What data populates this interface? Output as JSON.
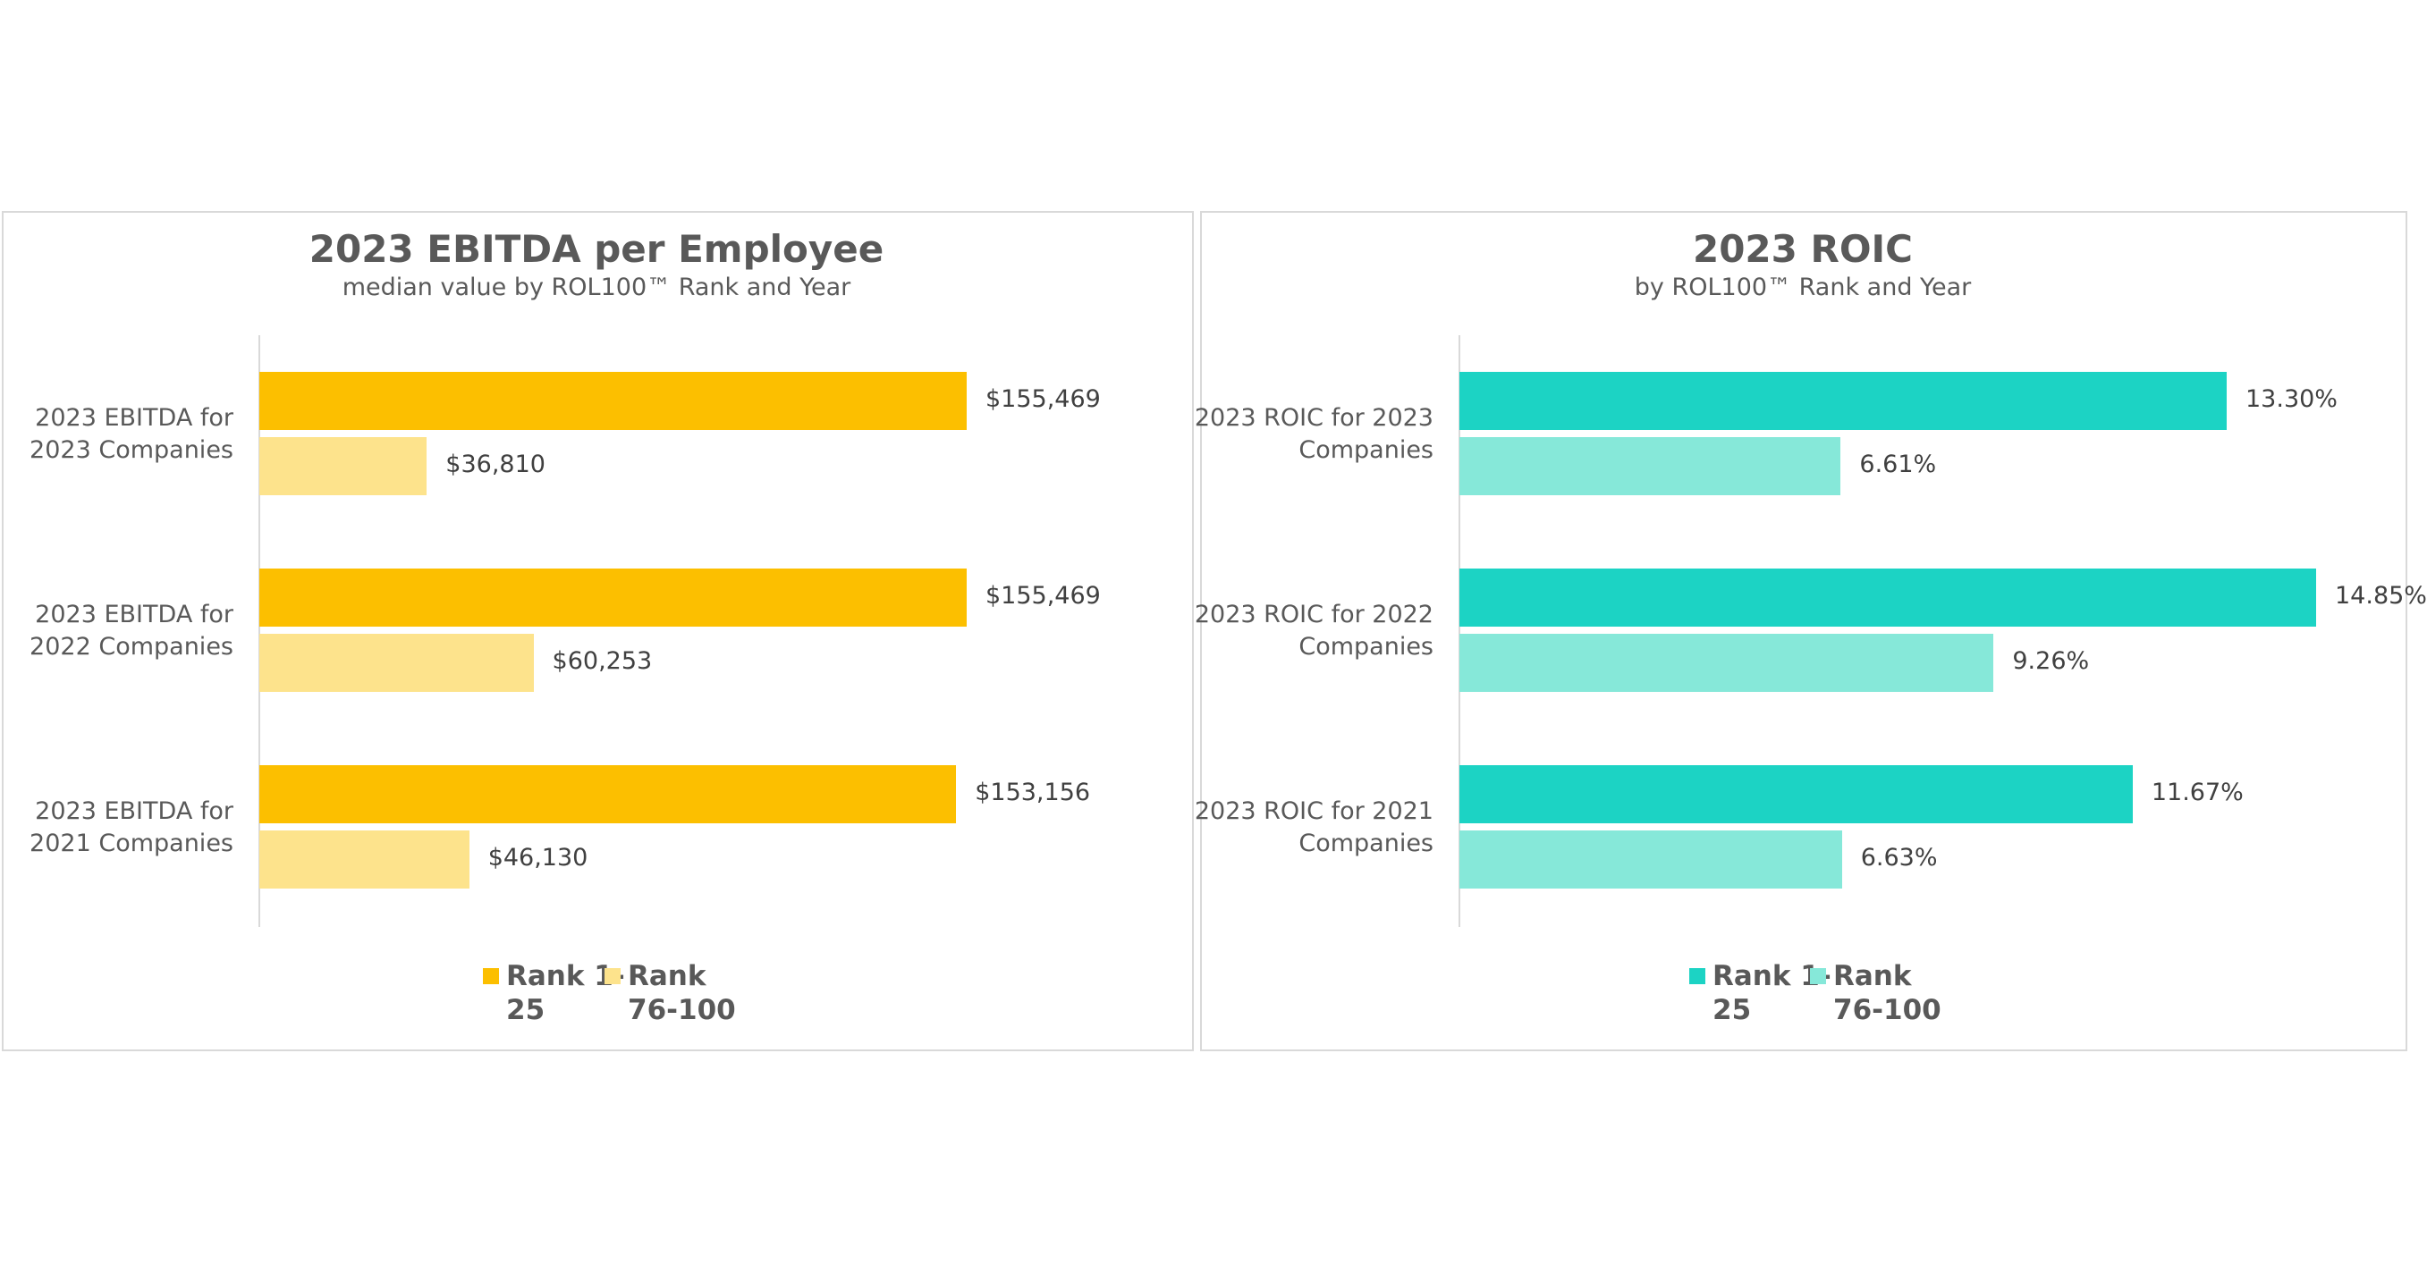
{
  "chart_data": [
    {
      "type": "bar",
      "orientation": "horizontal",
      "title": "2023 EBITDA per Employee",
      "subtitle": "median value by ROL100™ Rank and Year",
      "categories": [
        "2023 EBITDA for 2023 Companies",
        "2023 EBITDA for 2022 Companies",
        "2023 EBITDA for 2021 Companies"
      ],
      "series": [
        {
          "name": "Rank 1-25",
          "color": "#fcbf00",
          "values": [
            155469,
            155469,
            153156
          ],
          "value_labels": [
            "$155,469",
            "$155,469",
            "$153,156"
          ]
        },
        {
          "name": "Rank 76-100",
          "color": "#fde38c",
          "values": [
            36810,
            60253,
            46130
          ],
          "value_labels": [
            "$36,810",
            "$60,253",
            "$46,130"
          ]
        }
      ]
    },
    {
      "type": "bar",
      "orientation": "horizontal",
      "title": "2023 ROIC",
      "subtitle": "by ROL100™ Rank and Year",
      "categories": [
        "2023 ROIC for 2023 Companies",
        "2023 ROIC for 2022 Companies",
        "2023 ROIC for 2021 Companies"
      ],
      "series": [
        {
          "name": "Rank 1-25",
          "color": "#1cd3c4",
          "values": [
            13.3,
            14.85,
            11.67
          ],
          "value_labels": [
            "13.30%",
            "14.85%",
            "11.67%"
          ]
        },
        {
          "name": "Rank 76-100",
          "color": "#86e8d9",
          "values": [
            6.61,
            9.26,
            6.63
          ],
          "value_labels": [
            "6.61%",
            "9.26%",
            "6.63%"
          ]
        }
      ]
    }
  ]
}
